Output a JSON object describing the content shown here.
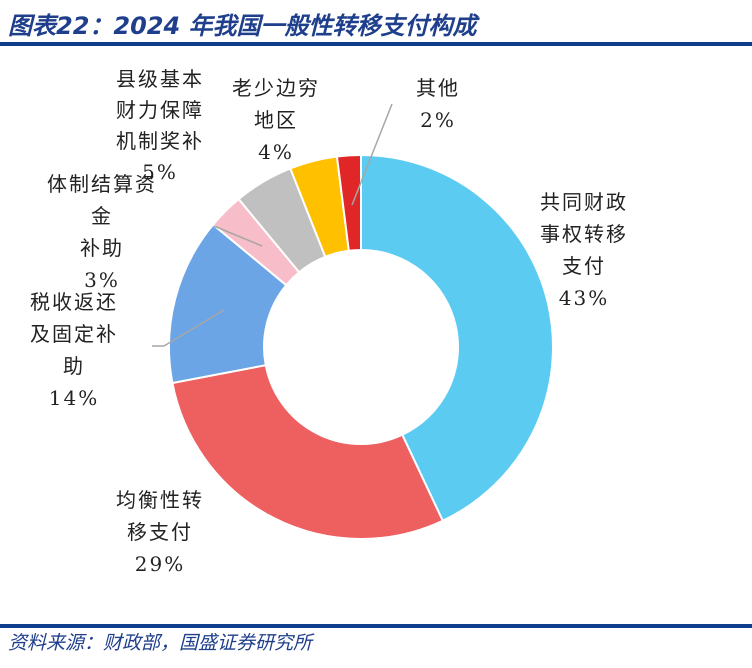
{
  "title": "图表22：2024 年我国一般性转移支付构成",
  "source": "资料来源：财政部，国盛证券研究所",
  "chart_data": {
    "type": "pie",
    "donut": true,
    "categories": [
      "共同财政事权转移支付",
      "均衡性转移支付",
      "税收返还及固定补助",
      "体制结算资金补助",
      "县级基本财力保障机制奖补",
      "老少边穷地区",
      "其他"
    ],
    "values": [
      43,
      29,
      14,
      3,
      5,
      4,
      2
    ],
    "colors": [
      "#5BCBF2",
      "#EE5F5F",
      "#6CA5E5",
      "#F7BDC9",
      "#C0C0C0",
      "#FFC000",
      "#E02626"
    ],
    "labels": [
      {
        "name": "共同财政\n事权转移\n支付",
        "pct": "43%"
      },
      {
        "name": "均衡性转\n移支付",
        "pct": "29%"
      },
      {
        "name": "税收返还\n及固定补\n助",
        "pct": "14%"
      },
      {
        "name": "体制结算资金\n补助",
        "pct": "3%"
      },
      {
        "name": "县级基本\n财力保障\n机制奖补",
        "pct": "5%"
      },
      {
        "name": "老少边穷\n地区",
        "pct": "4%"
      },
      {
        "name": "其他",
        "pct": "2%"
      }
    ],
    "legend": "none"
  }
}
